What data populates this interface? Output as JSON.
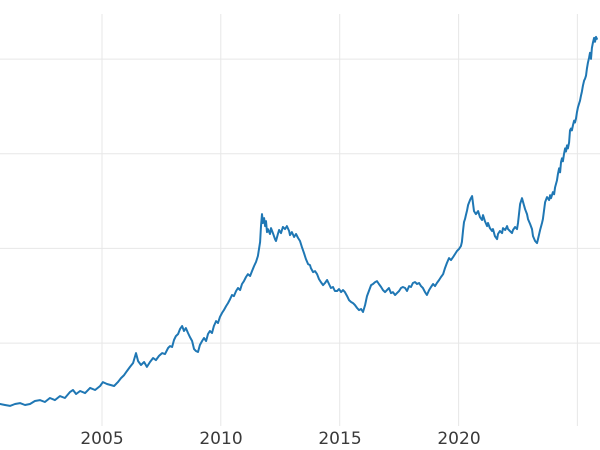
{
  "figure": {
    "background": "#ffffff",
    "grid_color": "#e7e7e7",
    "tick_label_color": "#3a3a3a",
    "line_color": "#1f77b4"
  },
  "chart_data": {
    "type": "line",
    "title": "",
    "xlabel": "",
    "ylabel": "",
    "grid": true,
    "legend_position": "none",
    "xlim": [
      2000.71,
      2025.95
    ],
    "ylim": [
      62,
      2238
    ],
    "x_gridlines": [
      2005,
      2010,
      2015,
      2020,
      2025
    ],
    "y_gridlines": [
      500,
      1000,
      1500,
      2000
    ],
    "x_tick_labels": [
      "2005",
      "2010",
      "2015",
      "2020"
    ],
    "x_ticks_labeled": [
      2005,
      2010,
      2015,
      2020
    ],
    "series": [
      {
        "name": "series-1",
        "color": "#1f77b4",
        "x": [
          2000.71,
          2000.92,
          2001.13,
          2001.34,
          2001.55,
          2001.76,
          2001.97,
          2002.18,
          2002.39,
          2002.6,
          2002.81,
          2003.02,
          2003.23,
          2003.44,
          2003.66,
          2003.78,
          2003.91,
          2004.08,
          2004.29,
          2004.5,
          2004.71,
          2004.92,
          2005.04,
          2005.21,
          2005.38,
          2005.51,
          2005.67,
          2005.8,
          2005.93,
          2006.05,
          2006.18,
          2006.31,
          2006.43,
          2006.52,
          2006.64,
          2006.77,
          2006.89,
          2007.02,
          2007.15,
          2007.27,
          2007.4,
          2007.53,
          2007.65,
          2007.78,
          2007.86,
          2007.95,
          2008.03,
          2008.11,
          2008.2,
          2008.28,
          2008.37,
          2008.45,
          2008.53,
          2008.62,
          2008.7,
          2008.79,
          2008.87,
          2008.95,
          2009.04,
          2009.12,
          2009.21,
          2009.29,
          2009.38,
          2009.46,
          2009.54,
          2009.63,
          2009.71,
          2009.8,
          2009.88,
          2009.96,
          2010.05,
          2010.13,
          2010.22,
          2010.3,
          2010.39,
          2010.47,
          2010.55,
          2010.64,
          2010.72,
          2010.81,
          2010.89,
          2010.97,
          2011.06,
          2011.14,
          2011.23,
          2011.31,
          2011.4,
          2011.48,
          2011.56,
          2011.65,
          2011.69,
          2011.73,
          2011.77,
          2011.82,
          2011.86,
          2011.9,
          2011.94,
          2011.98,
          2012.07,
          2012.11,
          2012.19,
          2012.28,
          2012.32,
          2012.4,
          2012.45,
          2012.53,
          2012.61,
          2012.7,
          2012.78,
          2012.87,
          2012.91,
          2012.99,
          2013.08,
          2013.16,
          2013.25,
          2013.33,
          2013.41,
          2013.5,
          2013.58,
          2013.67,
          2013.75,
          2013.79,
          2013.88,
          2013.96,
          2014.05,
          2014.13,
          2014.21,
          2014.3,
          2014.38,
          2014.47,
          2014.55,
          2014.63,
          2014.72,
          2014.8,
          2014.89,
          2014.97,
          2015.06,
          2015.14,
          2015.22,
          2015.31,
          2015.39,
          2015.48,
          2015.56,
          2015.64,
          2015.73,
          2015.81,
          2015.9,
          2015.98,
          2016.07,
          2016.15,
          2016.23,
          2016.32,
          2016.4,
          2016.49,
          2016.57,
          2016.65,
          2016.74,
          2016.82,
          2016.91,
          2016.99,
          2017.07,
          2017.16,
          2017.24,
          2017.33,
          2017.41,
          2017.5,
          2017.58,
          2017.66,
          2017.75,
          2017.83,
          2017.92,
          2018.0,
          2018.08,
          2018.17,
          2018.25,
          2018.34,
          2018.42,
          2018.5,
          2018.59,
          2018.67,
          2018.76,
          2018.84,
          2018.93,
          2019.01,
          2019.09,
          2019.18,
          2019.26,
          2019.35,
          2019.43,
          2019.51,
          2019.6,
          2019.68,
          2019.77,
          2019.85,
          2019.93,
          2020.02,
          2020.1,
          2020.14,
          2020.19,
          2020.23,
          2020.27,
          2020.31,
          2020.36,
          2020.4,
          2020.48,
          2020.52,
          2020.57,
          2020.61,
          2020.65,
          2020.73,
          2020.82,
          2020.9,
          2020.99,
          2021.03,
          2021.11,
          2021.2,
          2021.24,
          2021.32,
          2021.41,
          2021.45,
          2021.53,
          2021.62,
          2021.66,
          2021.74,
          2021.83,
          2021.87,
          2021.96,
          2022.04,
          2022.08,
          2022.16,
          2022.25,
          2022.29,
          2022.38,
          2022.46,
          2022.5,
          2022.59,
          2022.67,
          2022.75,
          2022.8,
          2022.88,
          2022.92,
          2023.01,
          2023.09,
          2023.13,
          2023.22,
          2023.3,
          2023.34,
          2023.43,
          2023.51,
          2023.55,
          2023.64,
          2023.72,
          2023.81,
          2023.85,
          2023.89,
          2023.97,
          2024.02,
          2024.06,
          2024.14,
          2024.18,
          2024.23,
          2024.27,
          2024.31,
          2024.35,
          2024.39,
          2024.44,
          2024.48,
          2024.52,
          2024.56,
          2024.6,
          2024.65,
          2024.69,
          2024.73,
          2024.77,
          2024.81,
          2024.86,
          2024.9,
          2024.94,
          2024.98,
          2025.02,
          2025.07,
          2025.11,
          2025.15,
          2025.19,
          2025.23,
          2025.28,
          2025.32,
          2025.36,
          2025.4,
          2025.44,
          2025.49,
          2025.53,
          2025.57,
          2025.61,
          2025.65,
          2025.7,
          2025.74,
          2025.78,
          2025.82
        ],
        "y": [
          178,
          173,
          168,
          178,
          183,
          173,
          178,
          194,
          199,
          189,
          210,
          199,
          220,
          210,
          242,
          252,
          231,
          247,
          236,
          263,
          252,
          273,
          294,
          284,
          278,
          273,
          294,
          315,
          331,
          352,
          374,
          395,
          447,
          405,
          384,
          400,
          374,
          400,
          421,
          410,
          432,
          447,
          442,
          474,
          484,
          479,
          516,
          537,
          548,
          574,
          590,
          564,
          579,
          553,
          532,
          511,
          469,
          458,
          453,
          490,
          511,
          527,
          511,
          548,
          564,
          553,
          590,
          616,
          606,
          637,
          659,
          674,
          695,
          711,
          732,
          754,
          748,
          775,
          791,
          780,
          812,
          827,
          849,
          864,
          854,
          880,
          907,
          928,
          960,
          1034,
          1118,
          1181,
          1134,
          1160,
          1118,
          1144,
          1086,
          1102,
          1076,
          1107,
          1081,
          1049,
          1039,
          1076,
          1097,
          1081,
          1113,
          1102,
          1118,
          1092,
          1070,
          1086,
          1060,
          1076,
          1055,
          1039,
          1007,
          975,
          944,
          917,
          912,
          896,
          875,
          880,
          864,
          838,
          822,
          806,
          817,
          833,
          812,
          791,
          796,
          775,
          775,
          785,
          769,
          780,
          769,
          748,
          727,
          717,
          711,
          701,
          685,
          674,
          680,
          664,
          701,
          748,
          775,
          806,
          812,
          822,
          827,
          812,
          796,
          780,
          769,
          780,
          791,
          764,
          769,
          754,
          764,
          775,
          791,
          796,
          791,
          775,
          801,
          796,
          817,
          822,
          812,
          817,
          801,
          791,
          769,
          754,
          780,
          796,
          812,
          801,
          817,
          833,
          849,
          864,
          896,
          923,
          949,
          938,
          954,
          970,
          986,
          997,
          1012,
          1034,
          1097,
          1139,
          1155,
          1176,
          1202,
          1229,
          1255,
          1265,
          1276,
          1234,
          1197,
          1181,
          1197,
          1165,
          1150,
          1176,
          1144,
          1118,
          1134,
          1107,
          1092,
          1102,
          1065,
          1049,
          1076,
          1092,
          1081,
          1107,
          1097,
          1118,
          1102,
          1092,
          1081,
          1097,
          1113,
          1102,
          1134,
          1234,
          1265,
          1229,
          1207,
          1181,
          1155,
          1129,
          1102,
          1065,
          1039,
          1028,
          1049,
          1097,
          1134,
          1155,
          1244,
          1271,
          1255,
          1281,
          1265,
          1297,
          1286,
          1323,
          1360,
          1392,
          1423,
          1402,
          1455,
          1476,
          1460,
          1502,
          1528,
          1512,
          1544,
          1528,
          1560,
          1623,
          1633,
          1623,
          1649,
          1675,
          1665,
          1686,
          1717,
          1744,
          1765,
          1780,
          1807,
          1828,
          1859,
          1886,
          1896,
          1912,
          1949,
          1980,
          2007,
          2033,
          2001,
          2059,
          2086,
          2112,
          2091,
          2117,
          2107
        ]
      }
    ]
  }
}
